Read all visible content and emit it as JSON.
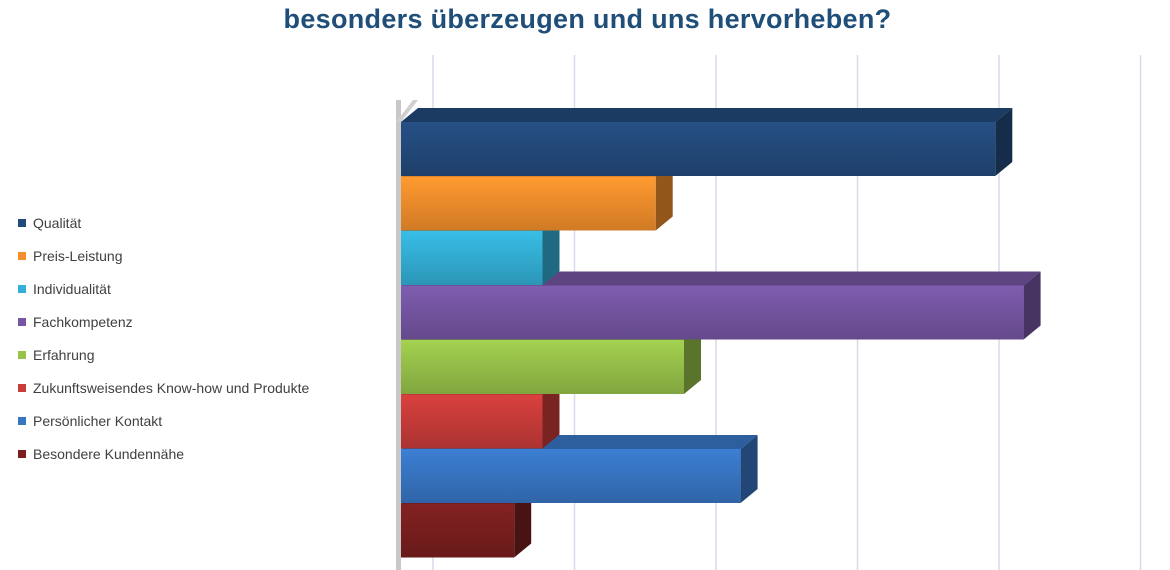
{
  "chart_data": {
    "type": "bar",
    "orientation": "horizontal",
    "style": "3d",
    "title": "besonders überzeugen und uns hervorheben?",
    "xlabel": "",
    "ylabel": "",
    "categories": [
      "Qualität",
      "Preis-Leistung",
      "Individualität",
      "Fachkompetenz",
      "Erfahrung",
      "Zukunftsweisendes Know-how und Produkte",
      "Persönlicher Kontakt",
      "Besondere Kundennähe"
    ],
    "values": [
      4.2,
      1.8,
      1.0,
      4.4,
      2.0,
      1.0,
      2.4,
      0.8
    ],
    "colors": [
      "#234a7c",
      "#f58f2c",
      "#34b0d6",
      "#7656a3",
      "#98c24a",
      "#c93c3a",
      "#3876c4",
      "#7a1f1f"
    ],
    "xlim": [
      0,
      5.25
    ],
    "grid": true,
    "legend_position": "left"
  }
}
